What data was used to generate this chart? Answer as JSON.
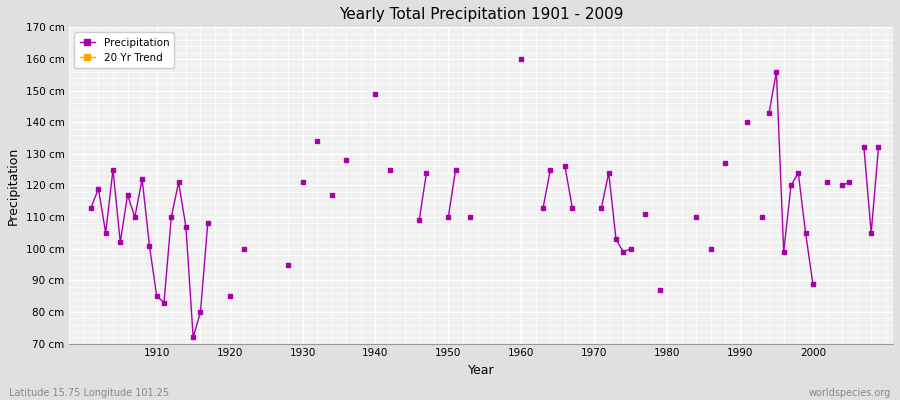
{
  "title": "Yearly Total Precipitation 1901 - 2009",
  "xlabel": "Year",
  "ylabel": "Precipitation",
  "subtitle": "Latitude 15.75 Longitude 101.25",
  "watermark": "worldspecies.org",
  "line_color": "#aa00aa",
  "trend_color": "#FFA500",
  "bg_color": "#e0e0e0",
  "plot_bg_color": "#f0f0f0",
  "ylim": [
    70,
    170
  ],
  "xlim": [
    1898,
    2011
  ],
  "xticks": [
    1910,
    1920,
    1930,
    1940,
    1950,
    1960,
    1970,
    1980,
    1990,
    2000
  ],
  "yticks": [
    70,
    80,
    90,
    100,
    110,
    120,
    130,
    140,
    150,
    160,
    170
  ],
  "years": [
    1901,
    1902,
    1903,
    1904,
    1905,
    1906,
    1907,
    1908,
    1909,
    1910,
    1911,
    1912,
    1913,
    1914,
    1915,
    1916,
    1917,
    1920,
    1922,
    1928,
    1930,
    1932,
    1934,
    1936,
    1940,
    1942,
    1946,
    1947,
    1950,
    1951,
    1953,
    1960,
    1963,
    1964,
    1966,
    1967,
    1971,
    1972,
    1973,
    1974,
    1975,
    1977,
    1979,
    1984,
    1986,
    1988,
    1991,
    1994,
    1995,
    1996,
    1997,
    1998,
    1999,
    2000,
    1993,
    2002,
    2004,
    2005,
    2007,
    2008,
    2009
  ],
  "precip": [
    113,
    119,
    105,
    125,
    102,
    117,
    110,
    122,
    101,
    85,
    83,
    110,
    121,
    107,
    72,
    80,
    108,
    85,
    100,
    95,
    121,
    134,
    117,
    128,
    149,
    125,
    109,
    124,
    110,
    125,
    110,
    160,
    113,
    125,
    126,
    113,
    113,
    124,
    103,
    99,
    100,
    111,
    87,
    110,
    100,
    127,
    140,
    143,
    156,
    99,
    120,
    124,
    105,
    89,
    110,
    121,
    120,
    121,
    132,
    105,
    132
  ]
}
